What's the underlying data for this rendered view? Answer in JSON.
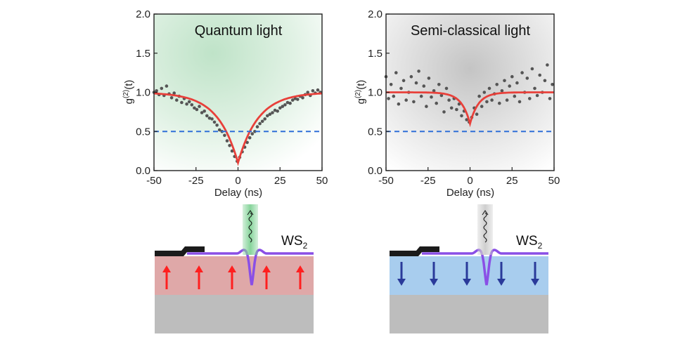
{
  "chart_data": [
    {
      "type": "scatter",
      "title": "Quantum light",
      "xlabel": "Delay (ns)",
      "ylabel": "g(2)(t)",
      "ylabel_main": "g",
      "ylabel_sup": "(2)",
      "ylabel_suffix": "(t)",
      "xlim": [
        -50,
        50
      ],
      "ylim": [
        0,
        2.0
      ],
      "xticks": [
        -50,
        -25,
        0,
        25,
        50
      ],
      "xtick_labels": [
        "-50",
        "-25",
        "0",
        "25",
        "50"
      ],
      "yticks": [
        0,
        0.5,
        1.0,
        1.5,
        2.0
      ],
      "ytick_labels": [
        "0.0",
        "0.5",
        "1.0",
        "1.5",
        "2.0"
      ],
      "background_color": "#bfe3c8",
      "series": [
        {
          "kind": "points",
          "color": "#555555",
          "x": [
            -50,
            -48.5,
            -47,
            -45.5,
            -44,
            -42.5,
            -41,
            -39.5,
            -38,
            -36.5,
            -35,
            -33.5,
            -32,
            -30.5,
            -29,
            -27.5,
            -26,
            -24.5,
            -23,
            -21.5,
            -20,
            -18.5,
            -17,
            -15.5,
            -14,
            -12.5,
            -11,
            -9.5,
            -8,
            -6.5,
            -5,
            -3.5,
            -2,
            -0.5,
            1,
            2.5,
            4,
            5.5,
            7,
            8.5,
            10,
            11.5,
            13,
            14.5,
            16,
            17.5,
            19,
            20.5,
            22,
            23.5,
            25,
            26.5,
            28,
            29.5,
            31,
            32.5,
            34,
            35.5,
            37,
            38.5,
            40,
            41.5,
            43,
            44.5,
            46,
            47.5,
            49
          ],
          "y": [
            1.0,
            1.02,
            0.97,
            1.05,
            0.96,
            1.08,
            0.98,
            0.93,
            0.99,
            0.9,
            0.95,
            0.87,
            0.92,
            0.85,
            0.88,
            0.84,
            0.8,
            0.78,
            0.82,
            0.74,
            0.76,
            0.7,
            0.67,
            0.66,
            0.62,
            0.58,
            0.52,
            0.5,
            0.45,
            0.38,
            0.32,
            0.25,
            0.18,
            0.12,
            0.17,
            0.24,
            0.3,
            0.36,
            0.42,
            0.47,
            0.5,
            0.56,
            0.6,
            0.63,
            0.66,
            0.7,
            0.72,
            0.74,
            0.77,
            0.76,
            0.8,
            0.82,
            0.84,
            0.87,
            0.86,
            0.9,
            0.92,
            0.91,
            0.95,
            0.93,
            0.97,
            1.0,
            0.96,
            1.02,
            0.99,
            1.03,
            1.0
          ]
        },
        {
          "kind": "fit",
          "color": "#e8403a",
          "baseline": 1.0,
          "dip": 0.9,
          "tau": 12
        },
        {
          "kind": "hline",
          "color": "#2f6fd8",
          "value": 0.5
        }
      ]
    },
    {
      "type": "scatter",
      "title": "Semi-classical light",
      "xlabel": "Delay (ns)",
      "ylabel": "g(2)(t)",
      "ylabel_main": "g",
      "ylabel_sup": "(2)",
      "ylabel_suffix": "(t)",
      "xlim": [
        -50,
        50
      ],
      "ylim": [
        0,
        2.0
      ],
      "xticks": [
        -50,
        -25,
        0,
        25,
        50
      ],
      "xtick_labels": [
        "-50",
        "-25",
        "0",
        "25",
        "50"
      ],
      "yticks": [
        0,
        0.5,
        1.0,
        1.5,
        2.0
      ],
      "ytick_labels": [
        "0.0",
        "0.5",
        "1.0",
        "1.5",
        "2.0"
      ],
      "background_color": "#c4c4c4",
      "series": [
        {
          "kind": "points",
          "color": "#555555",
          "x": [
            -50,
            -48.5,
            -47,
            -45.5,
            -44,
            -42.5,
            -41,
            -39.5,
            -38,
            -36.5,
            -35,
            -33.5,
            -32,
            -30.5,
            -29,
            -27.5,
            -26,
            -24.5,
            -23,
            -21.5,
            -20,
            -18.5,
            -17,
            -15.5,
            -14,
            -12.5,
            -11,
            -9.5,
            -8,
            -6.5,
            -5,
            -3.5,
            -2,
            -0.5,
            1,
            2.5,
            4,
            5.5,
            7,
            8.5,
            10,
            11.5,
            13,
            14.5,
            16,
            17.5,
            19,
            20.5,
            22,
            23.5,
            25,
            26.5,
            28,
            29.5,
            31,
            32.5,
            34,
            35.5,
            37,
            38.5,
            40,
            41.5,
            43,
            44.5,
            46,
            47.5,
            49
          ],
          "y": [
            1.2,
            0.92,
            1.1,
            0.95,
            1.25,
            0.85,
            1.05,
            1.15,
            0.9,
            1.0,
            1.2,
            0.88,
            1.12,
            1.27,
            0.95,
            1.08,
            0.82,
            1.18,
            0.94,
            1.02,
            0.86,
            1.1,
            0.96,
            0.75,
            1.05,
            0.9,
            0.8,
            0.92,
            0.78,
            0.85,
            0.7,
            0.76,
            0.65,
            0.62,
            0.68,
            0.8,
            0.72,
            0.95,
            0.82,
            1.0,
            0.88,
            1.05,
            0.9,
            0.98,
            1.1,
            0.86,
            1.02,
            1.15,
            0.9,
            1.08,
            1.2,
            0.95,
            1.12,
            0.88,
            1.25,
            1.0,
            1.18,
            0.92,
            1.3,
            1.05,
            0.96,
            1.22,
            1.0,
            1.15,
            1.35,
            0.92,
            1.1
          ]
        },
        {
          "kind": "fit",
          "color": "#e8403a",
          "baseline": 1.0,
          "dip": 0.4,
          "tau": 5
        },
        {
          "kind": "hline",
          "color": "#2f6fd8",
          "value": 0.5
        }
      ]
    }
  ],
  "schematics": [
    {
      "material_label": "WS",
      "material_sub": "2",
      "emission_color": "#86d49a",
      "substrate_color": "#dfa8a8",
      "arrow_direction": "up",
      "arrow_color": "#ff1f1f"
    },
    {
      "material_label": "WS",
      "material_sub": "2",
      "emission_color": "#d2d2d2",
      "substrate_color": "#a8cdee",
      "arrow_direction": "down",
      "arrow_color": "#2a3a9a"
    }
  ]
}
